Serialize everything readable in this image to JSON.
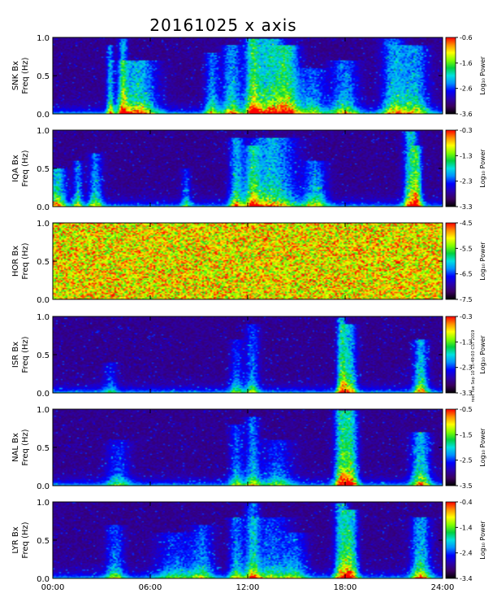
{
  "title": "20161025 x axis",
  "stamp": "root Tue Sep 10 15:49:03 CST 2019",
  "colorbar_label": "Log₁₀ Power",
  "x_ticks": [
    "00:00",
    "06:00",
    "12:00",
    "18:00",
    "24:00"
  ],
  "y_ticks": [
    "0.0",
    "0.5",
    "1.0"
  ],
  "colormap": [
    "#000000",
    "#3a0060",
    "#2a00b0",
    "#0000ff",
    "#0090ff",
    "#00e0e0",
    "#00d040",
    "#80ff00",
    "#ffff00",
    "#ff9000",
    "#ff0000"
  ],
  "chart_data": {
    "type": "heatmap",
    "title": "20161025 x axis",
    "x_unit": "hours UT",
    "xlim": [
      0,
      24
    ],
    "ylim": [
      0,
      1.0
    ],
    "x_ticks": [
      "00:00",
      "06:00",
      "12:00",
      "18:00",
      "24:00"
    ],
    "y_ticks": [
      0.0,
      0.5,
      1.0
    ],
    "colorbar_label": "Log₁₀ Power",
    "panels": [
      {
        "station": "SNK",
        "ylabel_line1": "SNK Bx",
        "ylabel_line2": "Freq (Hz)",
        "cmin": -3.6,
        "cmax": -0.6,
        "cbar_ticks": [
          "-0.6",
          "-1.6",
          "-2.6",
          "-3.6"
        ],
        "noise": false,
        "events": [
          {
            "t": 3.5,
            "h": 0.9,
            "w": 0.15,
            "a": 0.7
          },
          {
            "t": 4.3,
            "h": 1.0,
            "w": 0.2,
            "a": 0.8
          },
          {
            "t": 5.2,
            "h": 0.7,
            "w": 0.8,
            "a": 0.8
          },
          {
            "t": 9.8,
            "h": 0.8,
            "w": 0.3,
            "a": 0.6
          },
          {
            "t": 11.0,
            "h": 0.9,
            "w": 0.4,
            "a": 0.7
          },
          {
            "t": 12.3,
            "h": 1.0,
            "w": 0.3,
            "a": 0.8
          },
          {
            "t": 13.3,
            "h": 1.0,
            "w": 0.8,
            "a": 0.9
          },
          {
            "t": 14.5,
            "h": 0.9,
            "w": 0.5,
            "a": 0.8
          },
          {
            "t": 16.0,
            "h": 0.6,
            "w": 0.6,
            "a": 0.5
          },
          {
            "t": 18.0,
            "h": 0.7,
            "w": 0.6,
            "a": 0.6
          },
          {
            "t": 21.0,
            "h": 1.0,
            "w": 0.5,
            "a": 0.7
          },
          {
            "t": 22.3,
            "h": 0.9,
            "w": 0.6,
            "a": 0.7
          }
        ]
      },
      {
        "station": "IQA",
        "ylabel_line1": "IQA Bx",
        "ylabel_line2": "Freq (Hz)",
        "cmin": -3.3,
        "cmax": -0.3,
        "cbar_ticks": [
          "-0.3",
          "-1.3",
          "-2.3",
          "-3.3"
        ],
        "noise": false,
        "events": [
          {
            "t": 0.2,
            "h": 0.5,
            "w": 0.4,
            "a": 0.8
          },
          {
            "t": 1.5,
            "h": 0.6,
            "w": 0.2,
            "a": 0.6
          },
          {
            "t": 2.6,
            "h": 0.7,
            "w": 0.3,
            "a": 0.6
          },
          {
            "t": 8.2,
            "h": 0.5,
            "w": 0.2,
            "a": 0.4
          },
          {
            "t": 11.3,
            "h": 0.9,
            "w": 0.3,
            "a": 0.7
          },
          {
            "t": 12.3,
            "h": 0.8,
            "w": 0.3,
            "a": 0.7
          },
          {
            "t": 13.5,
            "h": 0.9,
            "w": 1.0,
            "a": 0.8
          },
          {
            "t": 16.2,
            "h": 0.6,
            "w": 0.5,
            "a": 0.6
          },
          {
            "t": 22.1,
            "h": 1.0,
            "w": 0.3,
            "a": 1.0
          },
          {
            "t": 22.5,
            "h": 0.8,
            "w": 0.2,
            "a": 0.8
          }
        ]
      },
      {
        "station": "HOR",
        "ylabel_line1": "HOR Bx",
        "ylabel_line2": "Freq (Hz)",
        "cmin": -7.5,
        "cmax": -4.5,
        "cbar_ticks": [
          "-4.5",
          "-5.5",
          "-6.5",
          "-7.5"
        ],
        "noise": true,
        "events": []
      },
      {
        "station": "ISR",
        "ylabel_line1": "ISR Bx",
        "ylabel_line2": "Freq (Hz)",
        "cmin": -3.3,
        "cmax": -0.3,
        "cbar_ticks": [
          "-0.3",
          "-1.3",
          "-2.3",
          "-3.3"
        ],
        "noise": false,
        "events": [
          {
            "t": 3.5,
            "h": 0.4,
            "w": 0.3,
            "a": 0.3
          },
          {
            "t": 11.3,
            "h": 0.7,
            "w": 0.3,
            "a": 0.4
          },
          {
            "t": 12.3,
            "h": 0.9,
            "w": 0.3,
            "a": 0.5
          },
          {
            "t": 17.8,
            "h": 1.0,
            "w": 0.2,
            "a": 0.9
          },
          {
            "t": 18.3,
            "h": 0.9,
            "w": 0.3,
            "a": 0.8
          },
          {
            "t": 22.7,
            "h": 0.7,
            "w": 0.3,
            "a": 0.8
          }
        ]
      },
      {
        "station": "NAL",
        "ylabel_line1": "NAL Bx",
        "ylabel_line2": "Freq (Hz)",
        "cmin": -3.5,
        "cmax": -0.5,
        "cbar_ticks": [
          "-0.5",
          "-1.5",
          "-2.5",
          "-3.5"
        ],
        "noise": false,
        "events": [
          {
            "t": 4.0,
            "h": 0.6,
            "w": 0.5,
            "a": 0.4
          },
          {
            "t": 11.3,
            "h": 0.8,
            "w": 0.3,
            "a": 0.5
          },
          {
            "t": 12.3,
            "h": 0.9,
            "w": 0.3,
            "a": 0.6
          },
          {
            "t": 13.8,
            "h": 0.6,
            "w": 0.7,
            "a": 0.4
          },
          {
            "t": 17.8,
            "h": 1.0,
            "w": 0.3,
            "a": 1.0
          },
          {
            "t": 18.4,
            "h": 1.0,
            "w": 0.3,
            "a": 0.9
          },
          {
            "t": 22.7,
            "h": 0.7,
            "w": 0.4,
            "a": 0.8
          }
        ]
      },
      {
        "station": "LYR",
        "ylabel_line1": "LYR Bx",
        "ylabel_line2": "Freq (Hz)",
        "cmin": -3.4,
        "cmax": -0.4,
        "cbar_ticks": [
          "-0.4",
          "-1.4",
          "-2.4",
          "-3.4"
        ],
        "noise": false,
        "events": [
          {
            "t": 3.8,
            "h": 0.7,
            "w": 0.4,
            "a": 0.5
          },
          {
            "t": 7.5,
            "h": 0.6,
            "w": 0.8,
            "a": 0.4
          },
          {
            "t": 9.2,
            "h": 0.7,
            "w": 0.5,
            "a": 0.5
          },
          {
            "t": 11.3,
            "h": 0.8,
            "w": 0.3,
            "a": 0.6
          },
          {
            "t": 12.3,
            "h": 1.0,
            "w": 0.3,
            "a": 0.7
          },
          {
            "t": 13.5,
            "h": 0.8,
            "w": 0.8,
            "a": 0.5
          },
          {
            "t": 15.0,
            "h": 0.6,
            "w": 0.5,
            "a": 0.4
          },
          {
            "t": 17.8,
            "h": 1.0,
            "w": 0.3,
            "a": 0.9
          },
          {
            "t": 18.4,
            "h": 0.9,
            "w": 0.3,
            "a": 0.9
          },
          {
            "t": 22.7,
            "h": 0.8,
            "w": 0.4,
            "a": 0.8
          }
        ]
      }
    ]
  }
}
